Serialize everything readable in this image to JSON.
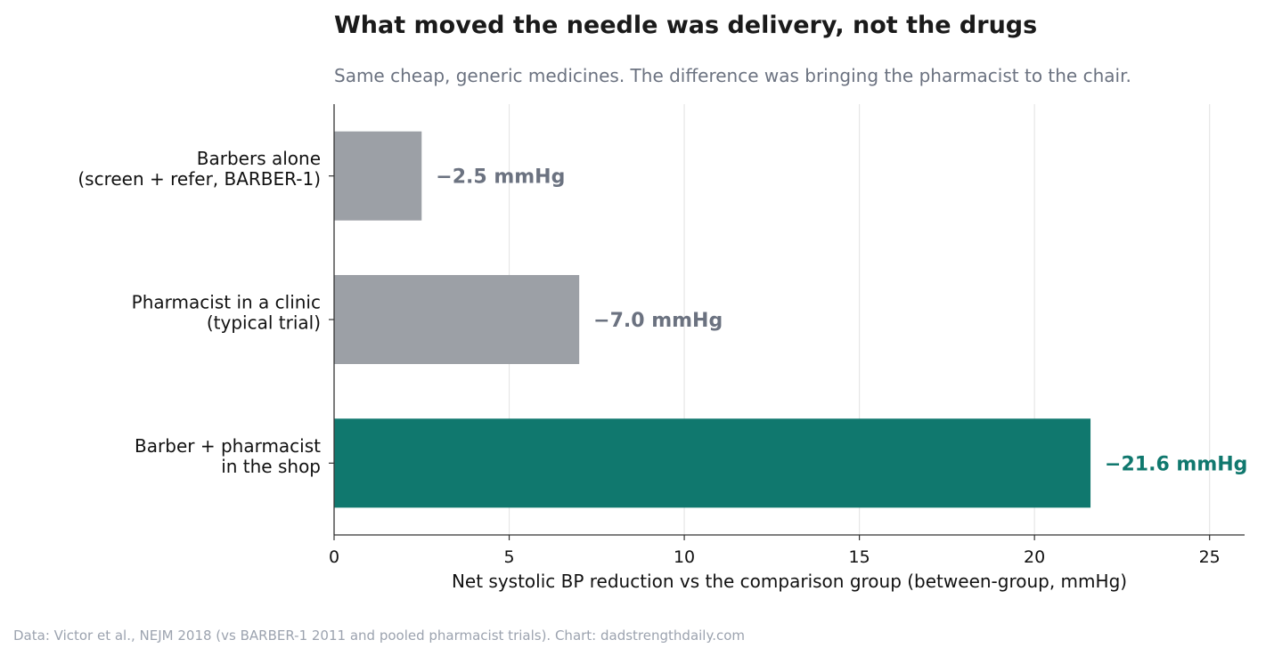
{
  "chart_data": {
    "type": "bar",
    "orientation": "horizontal",
    "title": "What moved the needle was delivery, not the drugs",
    "subtitle": "Same cheap, generic medicines. The difference was bringing the pharmacist to the chair.",
    "xlabel": "Net systolic BP reduction vs the comparison group (between-group, mmHg)",
    "ylabel": "",
    "xlim": [
      0,
      26
    ],
    "xticks": [
      0,
      5,
      10,
      15,
      20,
      25
    ],
    "grid": "vertical",
    "categories": [
      [
        "Barbers alone",
        "(screen + refer, BARBER-1)"
      ],
      [
        "Pharmacist in a clinic",
        "(typical trial)"
      ],
      [
        "Barber + pharmacist",
        "in the shop"
      ]
    ],
    "values": [
      2.5,
      7.0,
      21.6
    ],
    "value_labels": [
      "−2.5 mmHg",
      "−7.0 mmHg",
      "−21.6 mmHg"
    ],
    "bar_colors": [
      "#9ca0a6",
      "#9ca0a6",
      "#10786e"
    ],
    "label_colors": [
      "#6b7280",
      "#6b7280",
      "#10786e"
    ]
  },
  "source": "Data: Victor et al., NEJM 2018 (vs BARBER-1 2011 and pooled pharmacist trials).  Chart: dadstrengthdaily.com"
}
